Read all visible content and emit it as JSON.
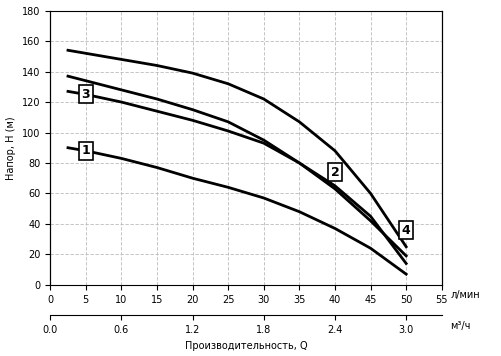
{
  "chart_data": {
    "type": "line",
    "xlabel": "Производительность, Q",
    "ylabel": "Напор, H (м)",
    "x_unit_label": "л/мин",
    "x2_unit_label": "м³/ч",
    "x": [
      2.5,
      5,
      10,
      15,
      20,
      25,
      30,
      35,
      40,
      45,
      50
    ],
    "series": [
      {
        "name": "1",
        "color": "#000000",
        "values": [
          90,
          88,
          83,
          77,
          70,
          64,
          57,
          48,
          37,
          24,
          7
        ]
      },
      {
        "name": "2",
        "color": "#000000",
        "values": [
          137,
          134,
          128,
          122,
          115,
          107,
          95,
          80,
          63,
          42,
          19
        ]
      },
      {
        "name": "3",
        "color": "#000000",
        "values": [
          127,
          125,
          120,
          114,
          108,
          101,
          93,
          80,
          65,
          45,
          14
        ]
      },
      {
        "name": "4",
        "color": "#000000",
        "values": [
          154,
          152,
          148,
          144,
          139,
          132,
          122,
          107,
          88,
          60,
          25
        ]
      }
    ],
    "xlim": [
      0,
      55
    ],
    "xticks": [
      0,
      5,
      10,
      15,
      20,
      25,
      30,
      35,
      40,
      45,
      50,
      55
    ],
    "ylim": [
      0,
      180
    ],
    "yticks": [
      0,
      20,
      40,
      60,
      80,
      100,
      120,
      140,
      160,
      180
    ],
    "x2lim": [
      0,
      3.3
    ],
    "x2ticks": [
      {
        "value": 0,
        "label": "0.0"
      },
      {
        "value": 0.6,
        "label": "0.6"
      },
      {
        "value": 1.2,
        "label": "1.2"
      },
      {
        "value": 1.8,
        "label": "1.8"
      },
      {
        "value": 2.4,
        "label": "2.4"
      },
      {
        "value": 3.0,
        "label": "3.0"
      }
    ],
    "grid": true
  }
}
